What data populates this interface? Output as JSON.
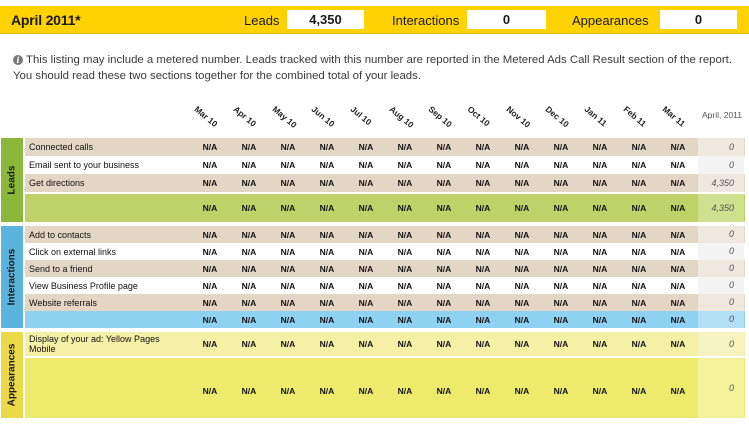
{
  "header": {
    "title": "April 2011*",
    "leads_label": "Leads",
    "leads_value": "4,350",
    "interactions_label": "Interactions",
    "interactions_value": "0",
    "appearances_label": "Appearances",
    "appearances_value": "0"
  },
  "note": {
    "icon": "info-icon",
    "text": "This listing may include a metered number. Leads tracked with this number are reported in the Metered Ads Call Result section of the report. You should read these two sections together for the combined total of your leads."
  },
  "months": [
    "Mar 10",
    "Apr 10",
    "May 10",
    "Jun 10",
    "Jul 10",
    "Aug 10",
    "Sep 10",
    "Oct 10",
    "Nov 10",
    "Dec 10",
    "Jan 11",
    "Feb 11",
    "Mar 11"
  ],
  "current_month": "April, 2011",
  "na": "N/A",
  "sections": {
    "leads": {
      "label": "Leads",
      "rows": [
        {
          "label": "Connected calls",
          "current": "0"
        },
        {
          "label": "Email sent to your business",
          "current": "0"
        },
        {
          "label": "Get directions",
          "current": "4,350"
        }
      ],
      "total_current": "4,350"
    },
    "interactions": {
      "label": "Interactions",
      "rows": [
        {
          "label": "Add to contacts",
          "current": "0"
        },
        {
          "label": "Click on external links",
          "current": "0"
        },
        {
          "label": "Send to a friend",
          "current": "0"
        },
        {
          "label": "View Business Profile page",
          "current": "0"
        },
        {
          "label": "Website referrals",
          "current": "0"
        }
      ],
      "total_current": "0"
    },
    "appearances": {
      "label": "Appearances",
      "rows": [
        {
          "label": "Display of your ad: Yellow Pages Mobile",
          "current": "0"
        }
      ],
      "total_current": "0"
    }
  }
}
